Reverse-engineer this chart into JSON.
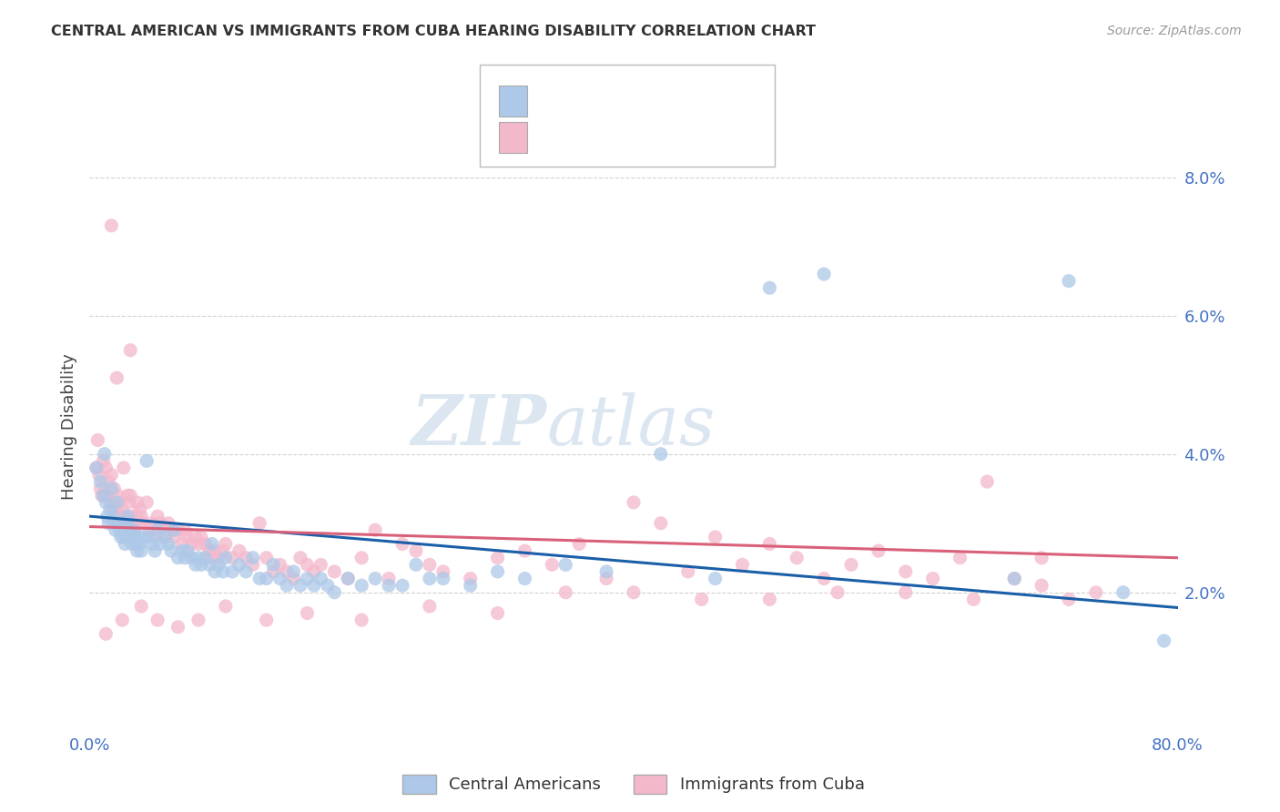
{
  "title": "CENTRAL AMERICAN VS IMMIGRANTS FROM CUBA HEARING DISABILITY CORRELATION CHART",
  "source": "Source: ZipAtlas.com",
  "ylabel": "Hearing Disability",
  "xlim": [
    0.0,
    0.8
  ],
  "ylim": [
    0.0,
    0.088
  ],
  "yticks": [
    0.02,
    0.04,
    0.06,
    0.08
  ],
  "ytick_labels": [
    "2.0%",
    "4.0%",
    "6.0%",
    "8.0%"
  ],
  "color_blue": "#adc8e8",
  "color_pink": "#f4b8cb",
  "color_blue_line": "#1a5fa8",
  "color_pink_line": "#d9607a",
  "color_title": "#333333",
  "color_axis_label": "#4472c4",
  "color_watermark": "#dce6f1",
  "watermark_zip": "ZIP",
  "watermark_atlas": "atlas",
  "scatter_blue": [
    [
      0.005,
      0.038
    ],
    [
      0.008,
      0.036
    ],
    [
      0.01,
      0.034
    ],
    [
      0.011,
      0.04
    ],
    [
      0.012,
      0.033
    ],
    [
      0.013,
      0.031
    ],
    [
      0.014,
      0.03
    ],
    [
      0.015,
      0.032
    ],
    [
      0.016,
      0.035
    ],
    [
      0.017,
      0.031
    ],
    [
      0.018,
      0.03
    ],
    [
      0.019,
      0.029
    ],
    [
      0.02,
      0.033
    ],
    [
      0.021,
      0.03
    ],
    [
      0.022,
      0.029
    ],
    [
      0.023,
      0.028
    ],
    [
      0.024,
      0.03
    ],
    [
      0.025,
      0.028
    ],
    [
      0.026,
      0.027
    ],
    [
      0.027,
      0.03
    ],
    [
      0.028,
      0.031
    ],
    [
      0.029,
      0.029
    ],
    [
      0.03,
      0.028
    ],
    [
      0.031,
      0.027
    ],
    [
      0.032,
      0.029
    ],
    [
      0.033,
      0.028
    ],
    [
      0.034,
      0.027
    ],
    [
      0.035,
      0.026
    ],
    [
      0.036,
      0.028
    ],
    [
      0.037,
      0.027
    ],
    [
      0.038,
      0.026
    ],
    [
      0.04,
      0.028
    ],
    [
      0.042,
      0.039
    ],
    [
      0.044,
      0.028
    ],
    [
      0.046,
      0.027
    ],
    [
      0.048,
      0.026
    ],
    [
      0.05,
      0.029
    ],
    [
      0.052,
      0.027
    ],
    [
      0.055,
      0.028
    ],
    [
      0.058,
      0.027
    ],
    [
      0.06,
      0.026
    ],
    [
      0.062,
      0.029
    ],
    [
      0.065,
      0.025
    ],
    [
      0.068,
      0.026
    ],
    [
      0.07,
      0.025
    ],
    [
      0.072,
      0.026
    ],
    [
      0.075,
      0.025
    ],
    [
      0.078,
      0.024
    ],
    [
      0.08,
      0.025
    ],
    [
      0.082,
      0.024
    ],
    [
      0.085,
      0.025
    ],
    [
      0.088,
      0.024
    ],
    [
      0.09,
      0.027
    ],
    [
      0.092,
      0.023
    ],
    [
      0.095,
      0.024
    ],
    [
      0.098,
      0.023
    ],
    [
      0.1,
      0.025
    ],
    [
      0.105,
      0.023
    ],
    [
      0.11,
      0.024
    ],
    [
      0.115,
      0.023
    ],
    [
      0.12,
      0.025
    ],
    [
      0.125,
      0.022
    ],
    [
      0.13,
      0.022
    ],
    [
      0.135,
      0.024
    ],
    [
      0.14,
      0.022
    ],
    [
      0.145,
      0.021
    ],
    [
      0.15,
      0.023
    ],
    [
      0.155,
      0.021
    ],
    [
      0.16,
      0.022
    ],
    [
      0.165,
      0.021
    ],
    [
      0.17,
      0.022
    ],
    [
      0.175,
      0.021
    ],
    [
      0.18,
      0.02
    ],
    [
      0.19,
      0.022
    ],
    [
      0.2,
      0.021
    ],
    [
      0.21,
      0.022
    ],
    [
      0.22,
      0.021
    ],
    [
      0.23,
      0.021
    ],
    [
      0.24,
      0.024
    ],
    [
      0.25,
      0.022
    ],
    [
      0.26,
      0.022
    ],
    [
      0.28,
      0.021
    ],
    [
      0.3,
      0.023
    ],
    [
      0.32,
      0.022
    ],
    [
      0.35,
      0.024
    ],
    [
      0.38,
      0.023
    ],
    [
      0.42,
      0.04
    ],
    [
      0.46,
      0.022
    ],
    [
      0.5,
      0.064
    ],
    [
      0.54,
      0.066
    ],
    [
      0.68,
      0.022
    ],
    [
      0.72,
      0.065
    ],
    [
      0.76,
      0.02
    ],
    [
      0.79,
      0.013
    ]
  ],
  "scatter_pink": [
    [
      0.005,
      0.038
    ],
    [
      0.006,
      0.042
    ],
    [
      0.007,
      0.037
    ],
    [
      0.008,
      0.035
    ],
    [
      0.009,
      0.034
    ],
    [
      0.01,
      0.039
    ],
    [
      0.011,
      0.034
    ],
    [
      0.012,
      0.038
    ],
    [
      0.013,
      0.034
    ],
    [
      0.014,
      0.036
    ],
    [
      0.015,
      0.033
    ],
    [
      0.016,
      0.037
    ],
    [
      0.017,
      0.033
    ],
    [
      0.018,
      0.035
    ],
    [
      0.019,
      0.032
    ],
    [
      0.02,
      0.031
    ],
    [
      0.021,
      0.034
    ],
    [
      0.022,
      0.033
    ],
    [
      0.023,
      0.031
    ],
    [
      0.024,
      0.032
    ],
    [
      0.025,
      0.038
    ],
    [
      0.026,
      0.031
    ],
    [
      0.027,
      0.03
    ],
    [
      0.028,
      0.034
    ],
    [
      0.029,
      0.033
    ],
    [
      0.03,
      0.034
    ],
    [
      0.031,
      0.031
    ],
    [
      0.032,
      0.03
    ],
    [
      0.033,
      0.029
    ],
    [
      0.034,
      0.031
    ],
    [
      0.035,
      0.033
    ],
    [
      0.036,
      0.03
    ],
    [
      0.037,
      0.032
    ],
    [
      0.038,
      0.031
    ],
    [
      0.04,
      0.03
    ],
    [
      0.042,
      0.033
    ],
    [
      0.044,
      0.029
    ],
    [
      0.046,
      0.03
    ],
    [
      0.048,
      0.028
    ],
    [
      0.05,
      0.031
    ],
    [
      0.052,
      0.03
    ],
    [
      0.054,
      0.029
    ],
    [
      0.056,
      0.028
    ],
    [
      0.058,
      0.03
    ],
    [
      0.06,
      0.029
    ],
    [
      0.062,
      0.028
    ],
    [
      0.065,
      0.029
    ],
    [
      0.068,
      0.027
    ],
    [
      0.07,
      0.029
    ],
    [
      0.072,
      0.028
    ],
    [
      0.075,
      0.027
    ],
    [
      0.078,
      0.028
    ],
    [
      0.08,
      0.027
    ],
    [
      0.082,
      0.028
    ],
    [
      0.085,
      0.027
    ],
    [
      0.088,
      0.026
    ],
    [
      0.09,
      0.025
    ],
    [
      0.092,
      0.026
    ],
    [
      0.095,
      0.025
    ],
    [
      0.098,
      0.026
    ],
    [
      0.1,
      0.027
    ],
    [
      0.105,
      0.025
    ],
    [
      0.11,
      0.026
    ],
    [
      0.115,
      0.025
    ],
    [
      0.12,
      0.024
    ],
    [
      0.125,
      0.03
    ],
    [
      0.13,
      0.025
    ],
    [
      0.135,
      0.023
    ],
    [
      0.14,
      0.024
    ],
    [
      0.145,
      0.023
    ],
    [
      0.15,
      0.022
    ],
    [
      0.155,
      0.025
    ],
    [
      0.16,
      0.024
    ],
    [
      0.165,
      0.023
    ],
    [
      0.17,
      0.024
    ],
    [
      0.18,
      0.023
    ],
    [
      0.19,
      0.022
    ],
    [
      0.2,
      0.025
    ],
    [
      0.21,
      0.029
    ],
    [
      0.22,
      0.022
    ],
    [
      0.23,
      0.027
    ],
    [
      0.24,
      0.026
    ],
    [
      0.25,
      0.024
    ],
    [
      0.26,
      0.023
    ],
    [
      0.28,
      0.022
    ],
    [
      0.3,
      0.025
    ],
    [
      0.32,
      0.026
    ],
    [
      0.34,
      0.024
    ],
    [
      0.36,
      0.027
    ],
    [
      0.38,
      0.022
    ],
    [
      0.4,
      0.033
    ],
    [
      0.42,
      0.03
    ],
    [
      0.44,
      0.023
    ],
    [
      0.46,
      0.028
    ],
    [
      0.48,
      0.024
    ],
    [
      0.5,
      0.027
    ],
    [
      0.52,
      0.025
    ],
    [
      0.54,
      0.022
    ],
    [
      0.56,
      0.024
    ],
    [
      0.58,
      0.026
    ],
    [
      0.6,
      0.023
    ],
    [
      0.62,
      0.022
    ],
    [
      0.64,
      0.025
    ],
    [
      0.66,
      0.036
    ],
    [
      0.68,
      0.022
    ],
    [
      0.7,
      0.025
    ],
    [
      0.72,
      0.019
    ],
    [
      0.74,
      0.02
    ],
    [
      0.016,
      0.073
    ],
    [
      0.02,
      0.051
    ],
    [
      0.03,
      0.055
    ],
    [
      0.012,
      0.014
    ],
    [
      0.024,
      0.016
    ],
    [
      0.038,
      0.018
    ],
    [
      0.05,
      0.016
    ],
    [
      0.065,
      0.015
    ],
    [
      0.08,
      0.016
    ],
    [
      0.1,
      0.018
    ],
    [
      0.13,
      0.016
    ],
    [
      0.16,
      0.017
    ],
    [
      0.2,
      0.016
    ],
    [
      0.25,
      0.018
    ],
    [
      0.3,
      0.017
    ],
    [
      0.35,
      0.02
    ],
    [
      0.4,
      0.02
    ],
    [
      0.45,
      0.019
    ],
    [
      0.5,
      0.019
    ],
    [
      0.55,
      0.02
    ],
    [
      0.6,
      0.02
    ],
    [
      0.65,
      0.019
    ],
    [
      0.7,
      0.021
    ]
  ]
}
